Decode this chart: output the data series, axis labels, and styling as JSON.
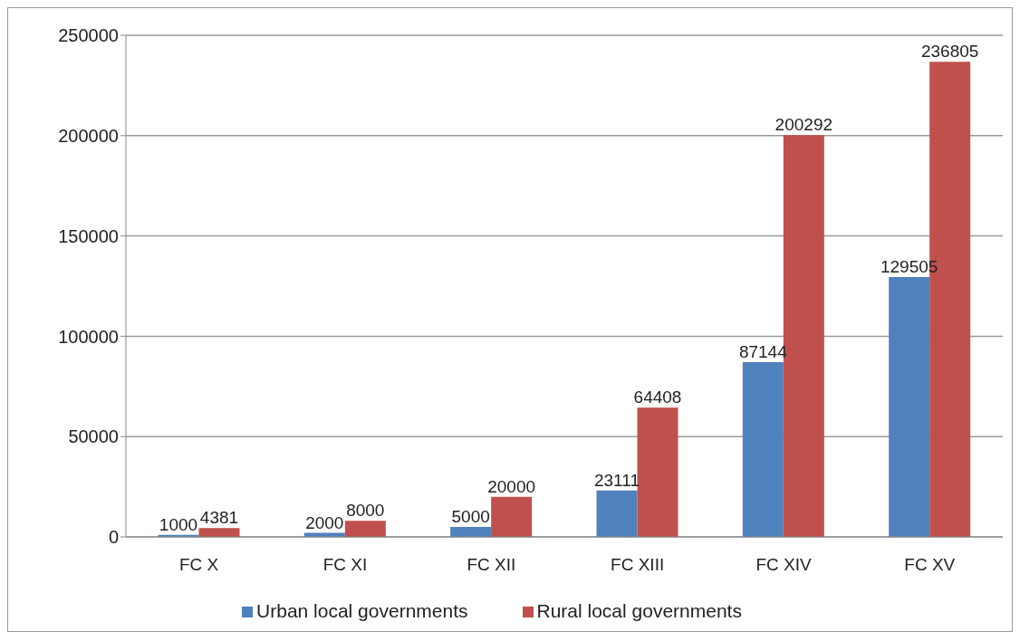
{
  "chart_data": {
    "type": "bar",
    "categories": [
      "FC X",
      "FC XI",
      "FC XII",
      "FC XIII",
      "FC XIV",
      "FC XV"
    ],
    "series": [
      {
        "name": "Urban local governments",
        "color": "#4f81bd",
        "values": [
          1000,
          2000,
          5000,
          23111,
          87144,
          129505
        ]
      },
      {
        "name": "Rural local governments",
        "color": "#c0504d",
        "values": [
          4381,
          8000,
          20000,
          64408,
          200292,
          236805
        ]
      }
    ],
    "ylim": [
      0,
      250000
    ],
    "yticks": [
      0,
      50000,
      100000,
      150000,
      200000,
      250000
    ],
    "grid": "y",
    "legend": "bottom",
    "data_labels": true
  }
}
